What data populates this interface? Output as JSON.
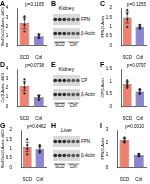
{
  "chart_data": [
    {
      "panel": "A",
      "type": "bar",
      "annotation": "p=0.1165",
      "y_label": "Slc40a1/β-Actin, ddCt",
      "categories": [
        "SCD",
        "Ctrl"
      ],
      "values": [
        2.4,
        1.0
      ],
      "errors": [
        0.6,
        0.2
      ],
      "points": [
        [
          1.5,
          2.2,
          2.8,
          3.1
        ],
        [
          0.8,
          0.9,
          1.1,
          1.2
        ]
      ],
      "colors": [
        "#f08070",
        "#8c85d6"
      ],
      "ylim": [
        0,
        4
      ],
      "yticks": [
        0,
        1,
        2,
        3,
        4
      ],
      "grid": false
    },
    {
      "panel": "C",
      "type": "bar",
      "annotation": "p=0.1255",
      "y_label": "FPN/β-Actin",
      "categories": [
        "SCD",
        "Ctrl"
      ],
      "values": [
        1.5,
        1.0
      ],
      "errors": [
        0.3,
        0.1
      ],
      "points": [
        [
          1.0,
          1.4,
          1.7,
          1.9
        ],
        [
          0.9,
          1.0,
          1.0,
          1.1
        ]
      ],
      "colors": [
        "#f08070",
        "#8c85d6"
      ],
      "ylim": [
        0,
        2
      ],
      "yticks": [
        0,
        0.5,
        1,
        1.5,
        2
      ],
      "grid": false
    },
    {
      "panel": "D",
      "type": "bar",
      "annotation": "p=0.0738",
      "y_label": "Cp/β-Actin, ddCt",
      "categories": [
        "SCD",
        "Ctrl"
      ],
      "values": [
        2.2,
        1.0
      ],
      "errors": [
        0.5,
        0.2
      ],
      "points": [
        [
          1.4,
          2.0,
          2.5,
          2.9
        ],
        [
          0.7,
          1.0,
          1.1,
          1.2
        ]
      ],
      "colors": [
        "#f08070",
        "#8c85d6"
      ],
      "ylim": [
        0,
        4
      ],
      "yticks": [
        0,
        1,
        2,
        3,
        4
      ],
      "grid": false
    },
    {
      "panel": "F",
      "type": "bar",
      "annotation": "p=0.0797",
      "y_label": "CP/β-Actin",
      "categories": [
        "SCD",
        "Ctrl"
      ],
      "values": [
        0.9,
        0.6
      ],
      "errors": [
        0.1,
        0.08
      ],
      "points": [
        [
          0.75,
          0.85,
          0.95,
          1.05
        ],
        [
          0.5,
          0.55,
          0.65,
          0.7
        ]
      ],
      "colors": [
        "#f08070",
        "#8c85d6"
      ],
      "ylim": [
        0,
        1.5
      ],
      "yticks": [
        0,
        0.5,
        1,
        1.5
      ],
      "grid": false
    },
    {
      "panel": "G",
      "type": "bar",
      "annotation": "p=0.6462",
      "y_label": "Slc40a1/β-Actin, ddCt",
      "categories": [
        "SCD",
        "Ctrl"
      ],
      "values": [
        1.1,
        1.0
      ],
      "errors": [
        0.25,
        0.15
      ],
      "points": [
        [
          0.7,
          1.0,
          1.2,
          1.5
        ],
        [
          0.8,
          0.9,
          1.1,
          1.2
        ]
      ],
      "colors": [
        "#f08070",
        "#8c85d6"
      ],
      "ylim": [
        0,
        2
      ],
      "yticks": [
        0,
        0.5,
        1,
        1.5,
        2
      ],
      "grid": false
    },
    {
      "panel": "I",
      "type": "bar",
      "annotation": "p=0.0010",
      "y_label": "FPN/β-Actin",
      "categories": [
        "SCD",
        "Ctrl"
      ],
      "values": [
        2.2,
        1.0
      ],
      "errors": [
        0.15,
        0.1
      ],
      "points": [
        [
          2.0,
          2.1,
          2.3,
          2.4
        ],
        [
          0.9,
          0.95,
          1.05,
          1.1
        ]
      ],
      "colors": [
        "#f08070",
        "#8c85d6"
      ],
      "ylim": [
        0,
        3
      ],
      "yticks": [
        0,
        1,
        2,
        3
      ],
      "grid": false
    }
  ],
  "blots": [
    {
      "panel": "B",
      "title": "Kidney",
      "bands": [
        "FPN",
        "β-Actin"
      ],
      "lanes": [
        "SCD",
        "Ctrl"
      ]
    },
    {
      "panel": "E",
      "title": "Kidney",
      "bands": [
        "CP",
        "β-Actin"
      ],
      "lanes": [
        "SCD",
        "Ctrl"
      ]
    },
    {
      "panel": "H",
      "title": "Liver",
      "bands": [
        "FPN",
        "β-Actin"
      ],
      "lanes": [
        "SCD",
        "Ctrl"
      ]
    }
  ]
}
